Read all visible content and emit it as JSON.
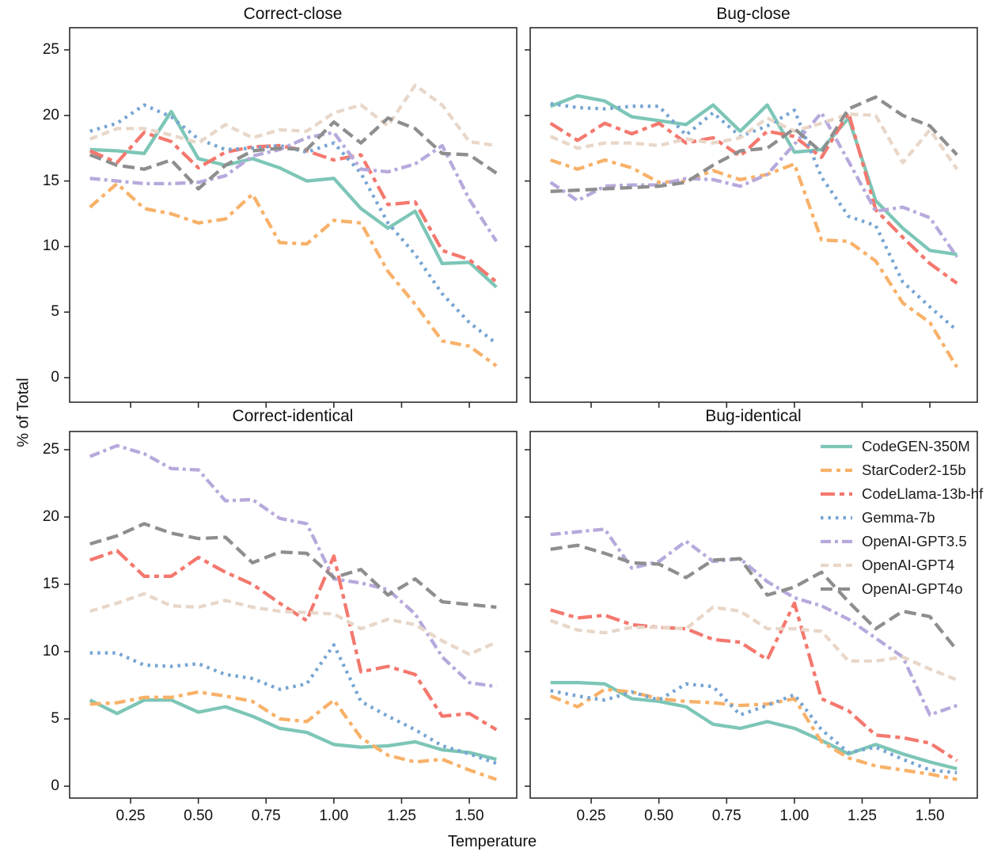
{
  "chart_data": {
    "type": "line",
    "xlabel": "Temperature",
    "ylabel": "% of Total",
    "x": [
      0.1,
      0.2,
      0.3,
      0.4,
      0.5,
      0.6,
      0.7,
      0.8,
      0.9,
      1.0,
      1.1,
      1.2,
      1.3,
      1.4,
      1.5,
      1.6
    ],
    "x_tick_labels": [
      "0.25",
      "0.50",
      "0.75",
      "1.00",
      "1.25",
      "1.50"
    ],
    "x_tick_values": [
      0.25,
      0.5,
      0.75,
      1.0,
      1.25,
      1.5
    ],
    "y_tick_labels": [
      "0",
      "5",
      "10",
      "15",
      "20",
      "25"
    ],
    "y_tick_values": [
      0,
      5,
      10,
      15,
      20,
      25
    ],
    "ylim": [
      -1.9,
      26.7
    ],
    "grid": false,
    "legend_position": "upper-right-of-bottom-right-panel",
    "series": [
      {
        "name": "CodeGEN-350M",
        "color": "#7DC6B7",
        "dash": "solid"
      },
      {
        "name": "StarCoder2-15b",
        "color": "#F8B169",
        "dash": "dash-dot"
      },
      {
        "name": "CodeLlama-13b-hf",
        "color": "#F4786E",
        "dash": "long-dash-dot"
      },
      {
        "name": "Gemma-7b",
        "color": "#77A5D3",
        "dash": "dotted"
      },
      {
        "name": "OpenAI-GPT3.5",
        "color": "#B7A9DC",
        "dash": "dash-dot-dot"
      },
      {
        "name": "OpenAI-GPT4",
        "color": "#E8D7C9",
        "dash": "dashed"
      },
      {
        "name": "OpenAI-GPT4o",
        "color": "#8E8E8E",
        "dash": "long-dash"
      }
    ],
    "panels": [
      {
        "title": "Correct-close",
        "series": [
          {
            "name": "CodeGEN-350M",
            "values": [
              17.4,
              17.3,
              17.1,
              20.3,
              16.7,
              16.2,
              16.7,
              16.0,
              15.0,
              15.2,
              12.9,
              11.4,
              12.7,
              8.7,
              8.8,
              6.9
            ]
          },
          {
            "name": "StarCoder2-15b",
            "values": [
              13.0,
              14.8,
              12.9,
              12.5,
              11.8,
              12.1,
              14.0,
              10.3,
              10.2,
              12.0,
              11.8,
              8.1,
              5.6,
              2.8,
              2.4,
              0.9
            ]
          },
          {
            "name": "CodeLlama-13b-hf",
            "values": [
              17.3,
              16.4,
              18.7,
              18.0,
              16.0,
              17.2,
              17.6,
              17.7,
              17.3,
              16.6,
              17.0,
              13.2,
              13.4,
              9.7,
              9.0,
              7.3
            ]
          },
          {
            "name": "Gemma-7b",
            "values": [
              18.8,
              19.4,
              20.8,
              19.9,
              18.2,
              17.4,
              17.5,
              17.7,
              17.2,
              17.9,
              15.6,
              11.8,
              9.4,
              6.4,
              4.2,
              2.6
            ]
          },
          {
            "name": "OpenAI-GPT3.5",
            "values": [
              15.2,
              15.0,
              14.8,
              14.8,
              14.9,
              15.4,
              16.9,
              17.4,
              18.3,
              18.7,
              15.9,
              15.7,
              16.3,
              17.7,
              13.6,
              10.4
            ]
          },
          {
            "name": "OpenAI-GPT4",
            "values": [
              18.2,
              19.0,
              19.0,
              18.5,
              17.9,
              19.3,
              18.3,
              18.9,
              18.8,
              20.2,
              20.8,
              19.2,
              22.3,
              20.8,
              18.0,
              17.7
            ]
          },
          {
            "name": "OpenAI-GPT4o",
            "values": [
              17.0,
              16.2,
              15.9,
              16.6,
              14.4,
              16.2,
              17.3,
              17.5,
              17.4,
              19.5,
              17.9,
              19.8,
              19.0,
              17.1,
              17.0,
              15.6
            ]
          }
        ]
      },
      {
        "title": "Bug-close",
        "series": [
          {
            "name": "CodeGEN-350M",
            "values": [
              20.7,
              21.5,
              21.1,
              19.9,
              19.6,
              19.3,
              20.8,
              18.8,
              20.8,
              17.2,
              17.4,
              19.8,
              13.5,
              11.4,
              9.7,
              9.4
            ]
          },
          {
            "name": "StarCoder2-15b",
            "values": [
              16.6,
              15.9,
              16.6,
              16.0,
              14.9,
              15.0,
              15.8,
              15.1,
              15.5,
              16.3,
              10.5,
              10.4,
              8.9,
              5.7,
              4.2,
              0.8
            ]
          },
          {
            "name": "CodeLlama-13b-hf",
            "values": [
              19.4,
              18.1,
              19.4,
              18.6,
              19.4,
              17.9,
              18.3,
              16.9,
              18.8,
              18.4,
              16.8,
              20.2,
              12.8,
              10.7,
              8.7,
              7.2
            ]
          },
          {
            "name": "Gemma-7b",
            "values": [
              20.9,
              20.6,
              20.5,
              20.7,
              20.7,
              18.5,
              20.2,
              18.4,
              19.2,
              20.4,
              15.3,
              12.3,
              11.6,
              7.3,
              5.4,
              3.6
            ]
          },
          {
            "name": "OpenAI-GPT3.5",
            "values": [
              14.9,
              13.5,
              14.6,
              14.7,
              14.7,
              15.2,
              15.1,
              14.6,
              15.5,
              17.8,
              20.2,
              16.5,
              12.7,
              13.0,
              12.2,
              9.2
            ]
          },
          {
            "name": "OpenAI-GPT4",
            "values": [
              18.4,
              17.5,
              17.9,
              17.9,
              17.7,
              18.2,
              17.9,
              18.3,
              19.8,
              18.8,
              19.4,
              20.1,
              20.0,
              16.4,
              18.9,
              15.9
            ]
          },
          {
            "name": "OpenAI-GPT4o",
            "values": [
              14.2,
              14.3,
              14.4,
              14.5,
              14.6,
              14.9,
              16.2,
              17.3,
              17.5,
              19.0,
              17.2,
              20.5,
              21.4,
              20.0,
              19.2,
              17.0
            ]
          }
        ]
      },
      {
        "title": "Correct-identical",
        "series": [
          {
            "name": "CodeGEN-350M",
            "values": [
              6.4,
              5.4,
              6.4,
              6.4,
              5.5,
              5.9,
              5.2,
              4.3,
              4.0,
              3.1,
              2.9,
              3.0,
              3.3,
              2.7,
              2.5,
              2.0
            ]
          },
          {
            "name": "StarCoder2-15b",
            "values": [
              6.1,
              6.2,
              6.6,
              6.6,
              7.0,
              6.7,
              6.3,
              5.0,
              4.8,
              6.4,
              3.6,
              2.3,
              1.8,
              2.0,
              1.2,
              0.5
            ]
          },
          {
            "name": "CodeLlama-13b-hf",
            "values": [
              16.8,
              17.5,
              15.6,
              15.6,
              17.0,
              15.9,
              15.0,
              13.6,
              12.3,
              17.1,
              8.5,
              8.9,
              8.3,
              5.2,
              5.4,
              4.2
            ]
          },
          {
            "name": "Gemma-7b",
            "values": [
              9.9,
              9.9,
              9.0,
              8.9,
              9.1,
              8.3,
              8.0,
              7.2,
              7.6,
              10.5,
              6.3,
              5.2,
              4.2,
              3.0,
              2.4,
              1.7
            ]
          },
          {
            "name": "OpenAI-GPT3.5",
            "values": [
              24.5,
              25.3,
              24.7,
              23.6,
              23.5,
              21.2,
              21.3,
              19.9,
              19.5,
              15.4,
              15.1,
              14.6,
              12.8,
              9.6,
              7.7,
              7.4
            ]
          },
          {
            "name": "OpenAI-GPT4",
            "values": [
              13.0,
              13.6,
              14.3,
              13.4,
              13.3,
              13.8,
              13.3,
              13.0,
              12.9,
              12.8,
              11.7,
              12.4,
              12.0,
              10.8,
              9.8,
              10.7
            ]
          },
          {
            "name": "OpenAI-GPT4o",
            "values": [
              18.0,
              18.6,
              19.5,
              18.8,
              18.4,
              18.5,
              16.6,
              17.4,
              17.3,
              15.5,
              16.1,
              14.2,
              15.4,
              13.7,
              13.5,
              13.3
            ]
          }
        ]
      },
      {
        "title": "Bug-identical",
        "series": [
          {
            "name": "CodeGEN-350M",
            "values": [
              7.7,
              7.7,
              7.6,
              6.5,
              6.3,
              5.9,
              4.6,
              4.3,
              4.8,
              4.3,
              3.4,
              2.4,
              3.1,
              2.4,
              1.8,
              1.3
            ]
          },
          {
            "name": "StarCoder2-15b",
            "values": [
              6.7,
              5.9,
              7.2,
              7.0,
              6.5,
              6.3,
              6.2,
              6.0,
              6.1,
              6.5,
              3.3,
              2.1,
              1.5,
              1.2,
              0.9,
              0.5
            ]
          },
          {
            "name": "CodeLlama-13b-hf",
            "values": [
              13.1,
              12.5,
              12.7,
              12.0,
              11.8,
              11.7,
              10.9,
              10.7,
              9.4,
              13.6,
              6.5,
              5.6,
              3.8,
              3.6,
              3.2,
              1.9
            ]
          },
          {
            "name": "Gemma-7b",
            "values": [
              7.1,
              6.7,
              6.4,
              7.0,
              6.4,
              7.6,
              7.4,
              5.3,
              6.0,
              6.8,
              4.2,
              2.5,
              2.9,
              2.0,
              1.2,
              1.0
            ]
          },
          {
            "name": "OpenAI-GPT3.5",
            "values": [
              18.7,
              18.9,
              19.1,
              16.2,
              16.7,
              18.2,
              16.7,
              16.9,
              15.2,
              14.0,
              13.4,
              12.4,
              11.0,
              9.6,
              5.3,
              6.0
            ]
          },
          {
            "name": "OpenAI-GPT4",
            "values": [
              12.3,
              11.6,
              11.4,
              11.8,
              11.8,
              11.7,
              13.3,
              13.0,
              11.7,
              11.7,
              11.5,
              9.3,
              9.3,
              9.6,
              8.7,
              7.9
            ]
          },
          {
            "name": "OpenAI-GPT4o",
            "values": [
              17.6,
              17.9,
              17.3,
              16.6,
              16.5,
              15.5,
              16.8,
              16.9,
              14.2,
              14.8,
              15.9,
              13.7,
              11.7,
              13.0,
              12.6,
              10.1
            ]
          }
        ]
      }
    ]
  }
}
